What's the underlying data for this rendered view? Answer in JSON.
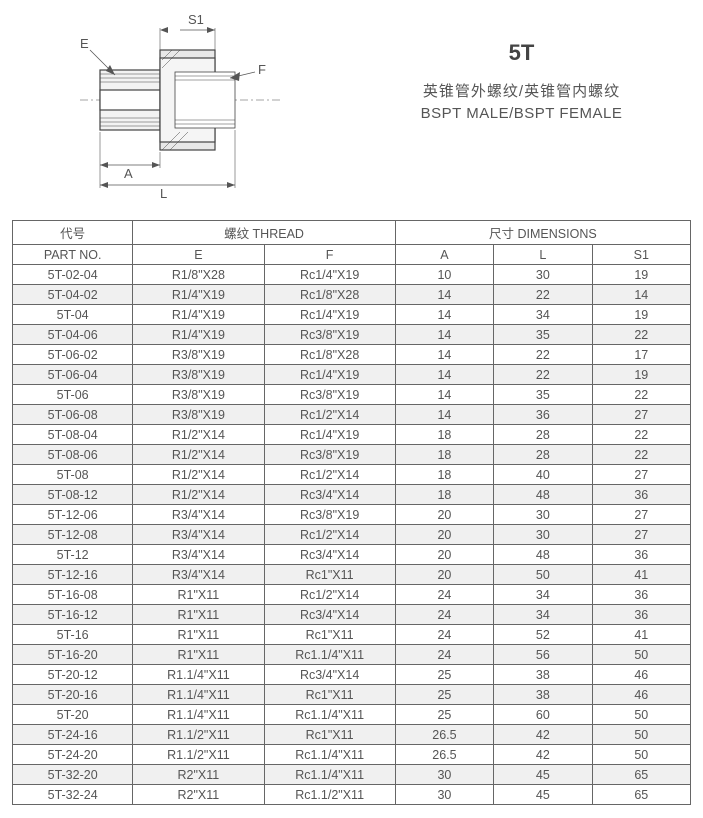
{
  "title": {
    "main": "5T",
    "sub_cn": "英锥管外螺纹/英锥管内螺纹",
    "sub_en": "BSPT MALE/BSPT FEMALE"
  },
  "diagram_labels": {
    "S1": "S1",
    "E": "E",
    "F": "F",
    "A": "A",
    "L": "L"
  },
  "headers": {
    "group1": "代号",
    "group2": "螺纹 THREAD",
    "group3": "尺寸 DIMENSIONS",
    "partno": "PART NO.",
    "E": "E",
    "F": "F",
    "A": "A",
    "L": "L",
    "S1": "S1"
  },
  "rows": [
    {
      "part": "5T-02-04",
      "E": "R1/8\"X28",
      "F": "Rc1/4\"X19",
      "A": "10",
      "L": "30",
      "S1": "19",
      "shade": false
    },
    {
      "part": "5T-04-02",
      "E": "R1/4\"X19",
      "F": "Rc1/8\"X28",
      "A": "14",
      "L": "22",
      "S1": "14",
      "shade": true
    },
    {
      "part": "5T-04",
      "E": "R1/4\"X19",
      "F": "Rc1/4\"X19",
      "A": "14",
      "L": "34",
      "S1": "19",
      "shade": false
    },
    {
      "part": "5T-04-06",
      "E": "R1/4\"X19",
      "F": "Rc3/8\"X19",
      "A": "14",
      "L": "35",
      "S1": "22",
      "shade": true
    },
    {
      "part": "5T-06-02",
      "E": "R3/8\"X19",
      "F": "Rc1/8\"X28",
      "A": "14",
      "L": "22",
      "S1": "17",
      "shade": false
    },
    {
      "part": "5T-06-04",
      "E": "R3/8\"X19",
      "F": "Rc1/4\"X19",
      "A": "14",
      "L": "22",
      "S1": "19",
      "shade": true
    },
    {
      "part": "5T-06",
      "E": "R3/8\"X19",
      "F": "Rc3/8\"X19",
      "A": "14",
      "L": "35",
      "S1": "22",
      "shade": false
    },
    {
      "part": "5T-06-08",
      "E": "R3/8\"X19",
      "F": "Rc1/2\"X14",
      "A": "14",
      "L": "36",
      "S1": "27",
      "shade": true
    },
    {
      "part": "5T-08-04",
      "E": "R1/2\"X14",
      "F": "Rc1/4\"X19",
      "A": "18",
      "L": "28",
      "S1": "22",
      "shade": false
    },
    {
      "part": "5T-08-06",
      "E": "R1/2\"X14",
      "F": "Rc3/8\"X19",
      "A": "18",
      "L": "28",
      "S1": "22",
      "shade": true
    },
    {
      "part": "5T-08",
      "E": "R1/2\"X14",
      "F": "Rc1/2\"X14",
      "A": "18",
      "L": "40",
      "S1": "27",
      "shade": false
    },
    {
      "part": "5T-08-12",
      "E": "R1/2\"X14",
      "F": "Rc3/4\"X14",
      "A": "18",
      "L": "48",
      "S1": "36",
      "shade": true
    },
    {
      "part": "5T-12-06",
      "E": "R3/4\"X14",
      "F": "Rc3/8\"X19",
      "A": "20",
      "L": "30",
      "S1": "27",
      "shade": false
    },
    {
      "part": "5T-12-08",
      "E": "R3/4\"X14",
      "F": "Rc1/2\"X14",
      "A": "20",
      "L": "30",
      "S1": "27",
      "shade": true
    },
    {
      "part": "5T-12",
      "E": "R3/4\"X14",
      "F": "Rc3/4\"X14",
      "A": "20",
      "L": "48",
      "S1": "36",
      "shade": false
    },
    {
      "part": "5T-12-16",
      "E": "R3/4\"X14",
      "F": "Rc1\"X11",
      "A": "20",
      "L": "50",
      "S1": "41",
      "shade": true
    },
    {
      "part": "5T-16-08",
      "E": "R1\"X11",
      "F": "Rc1/2\"X14",
      "A": "24",
      "L": "34",
      "S1": "36",
      "shade": false
    },
    {
      "part": "5T-16-12",
      "E": "R1\"X11",
      "F": "Rc3/4\"X14",
      "A": "24",
      "L": "34",
      "S1": "36",
      "shade": true
    },
    {
      "part": "5T-16",
      "E": "R1\"X11",
      "F": "Rc1\"X11",
      "A": "24",
      "L": "52",
      "S1": "41",
      "shade": false
    },
    {
      "part": "5T-16-20",
      "E": "R1\"X11",
      "F": "Rc1.1/4\"X11",
      "A": "24",
      "L": "56",
      "S1": "50",
      "shade": true
    },
    {
      "part": "5T-20-12",
      "E": "R1.1/4\"X11",
      "F": "Rc3/4\"X14",
      "A": "25",
      "L": "38",
      "S1": "46",
      "shade": false
    },
    {
      "part": "5T-20-16",
      "E": "R1.1/4\"X11",
      "F": "Rc1\"X11",
      "A": "25",
      "L": "38",
      "S1": "46",
      "shade": true
    },
    {
      "part": "5T-20",
      "E": "R1.1/4\"X11",
      "F": "Rc1.1/4\"X11",
      "A": "25",
      "L": "60",
      "S1": "50",
      "shade": false
    },
    {
      "part": "5T-24-16",
      "E": "R1.1/2\"X11",
      "F": "Rc1\"X11",
      "A": "26.5",
      "L": "42",
      "S1": "50",
      "shade": true
    },
    {
      "part": "5T-24-20",
      "E": "R1.1/2\"X11",
      "F": "Rc1.1/4\"X11",
      "A": "26.5",
      "L": "42",
      "S1": "50",
      "shade": false
    },
    {
      "part": "5T-32-20",
      "E": "R2\"X11",
      "F": "Rc1.1/4\"X11",
      "A": "30",
      "L": "45",
      "S1": "65",
      "shade": true
    },
    {
      "part": "5T-32-24",
      "E": "R2\"X11",
      "F": "Rc1.1/2\"X11",
      "A": "30",
      "L": "45",
      "S1": "65",
      "shade": false
    }
  ]
}
